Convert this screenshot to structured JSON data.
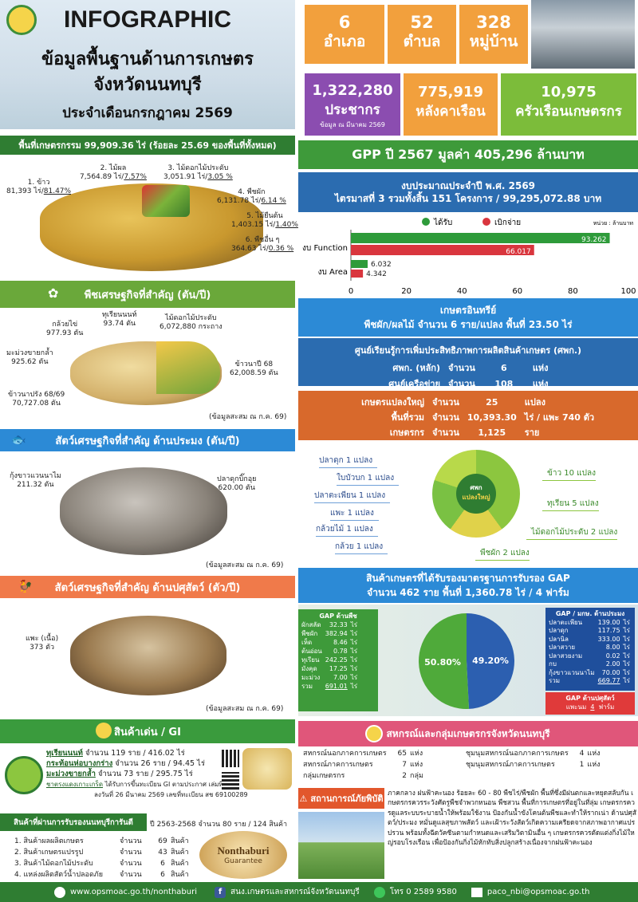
{
  "header": {
    "title": "INFOGRAPHIC",
    "line1": "ข้อมูลพื้นฐานด้านการเกษตร",
    "line2": "จังหวัดนนทบุรี",
    "line3": "ประจำเดือนกรกฎาคม 2569"
  },
  "stats": [
    {
      "num": "6",
      "label": "อำเภอ"
    },
    {
      "num": "52",
      "label": "ตำบล"
    },
    {
      "num": "328",
      "label": "หมู่บ้าน"
    }
  ],
  "stats2": [
    {
      "num": "1,322,280",
      "label": "ประชากร",
      "note": "ข้อมูล ณ มีนาคม 2569"
    },
    {
      "num": "775,919",
      "label": "หลังคาเรือน"
    },
    {
      "num": "10,975",
      "label": "ครัวเรือนเกษตรกร"
    }
  ],
  "agri_area": {
    "banner": "พื้นที่เกษตรกรรม 99,909.36 ไร่ (ร้อยละ 25.69 ของพื้นที่ทั้งหมด)",
    "items": [
      {
        "name": "1. ข้าว",
        "value": "81,393 ไร่/",
        "pct": "81.47%"
      },
      {
        "name": "2. ไม้ผล",
        "value": "7,564.89 ไร่/",
        "pct": "7.57%"
      },
      {
        "name": "3. ไม้ดอกไม้ประดับ",
        "value": "3,051.91 ไร่/",
        "pct": "3.05 %"
      },
      {
        "name": "4. พืชผัก",
        "value": "6,131.78 ไร่/",
        "pct": "6.14 %"
      },
      {
        "name": "5. ไม้ยืนต้น",
        "value": "1,403.15 ไร่/",
        "pct": "1.40%"
      },
      {
        "name": "6. พืชอื่น ๆ",
        "value": "364.63 ไร่/",
        "pct": "0.36 %"
      }
    ]
  },
  "crops": {
    "banner": "พืชเศรษฐกิจที่สำคัญ (ตัน/ปี)",
    "items": [
      {
        "name": "ทุเรียนนนท์",
        "value": "93.74 ตัน"
      },
      {
        "name": "กล้วยไข่",
        "value": "977.93 ตัน"
      },
      {
        "name": "ไม้ดอกไม้ประดับ",
        "value": "6,072,880 กระถาง"
      },
      {
        "name": "มะม่วงขายกล้ำ",
        "value": "925.62 ตัน"
      },
      {
        "name": "ข้าวนาปี 68",
        "value": "62,008.59 ตัน"
      },
      {
        "name": "ข้าวนาปรัง 68/69",
        "value": "70,727.08 ตัน"
      }
    ],
    "note": "(ข้อมูลสะสม ณ ก.ค. 69)"
  },
  "fish": {
    "banner": "สัตว์เศรษฐกิจที่สำคัญ ด้านประมง (ตัน/ปี)",
    "items": [
      {
        "name": "กุ้งขาวแวนนาไม",
        "value": "211.32 ตัน"
      },
      {
        "name": "ปลาดุกบิ๊กอุย",
        "value": "620.00 ตัน"
      }
    ],
    "note": "(ข้อมูลสะสม ณ ก.ค. 69)"
  },
  "livestock": {
    "banner": "สัตว์เศรษฐกิจที่สำคัญ ด้านปศุสัตว์ (ตัว/ปี)",
    "items": [
      {
        "name": "แพะ (เนื้อ)",
        "value": "373 ตัว"
      }
    ],
    "note": "(ข้อมูลสะสม ณ ก.ค. 69)"
  },
  "gi": {
    "banner": "สินค้าเด่น / GI",
    "items": [
      {
        "name": "ทุเรียนนนท์",
        "detail": "จำนวน 119 ราย / 416.02 ไร่"
      },
      {
        "name": "กระท้อนห่อบางกร่าง",
        "detail": "จำนวน 26 ราย / 94.45 ไร่"
      },
      {
        "name": "มะม่วงขายกล้ำ",
        "detail": "จำนวน 73 ราย / 295.75 ไร่"
      },
      {
        "name": "ชาตรงแดงเกาะเกร็ด",
        "detail": "ได้รับการขึ้นทะเบียน GI ตามประกาศ เล่มที่ 110"
      }
    ],
    "foot": "ลงวันที่ 26 มีนาคม 2569 เลขที่ทะเบียน สช 69100289"
  },
  "certified": {
    "title": "สินค้าที่ผ่านการรับรองนนทบุรีการันตี",
    "period": "ปี 2563-2568 จำนวน 80 ราย / 124 สินค้า",
    "items": [
      {
        "name": "1. สินค้าผลผลิตเกษตร",
        "count": "จำนวน",
        "n": "69",
        "unit": "สินค้า"
      },
      {
        "name": "2. สินค้าเกษตรแปรรูป",
        "count": "จำนวน",
        "n": "43",
        "unit": "สินค้า"
      },
      {
        "name": "3. สินค้าไม้ดอกไม้ประดับ",
        "count": "จำนวน",
        "n": "6",
        "unit": "สินค้า"
      },
      {
        "name": "4. แหล่งผลิตสัตว์น้ำปลอดภัย",
        "count": "จำนวน",
        "n": "6",
        "unit": "สินค้า"
      }
    ],
    "logo": "Nonthaburi",
    "logo2": "Guarantee"
  },
  "gpp": "GPP ปี 2567 มูลค่า 405,296  ล้านบาท",
  "budget": {
    "line1": "งบประมาณประจำปี พ.ศ. 2569",
    "line2": "ไตรมาสที่ 3  รวมทั้งสิ้น  151 โครงการ / 99,295,072.88 บาท",
    "legend1": "ได้รับ",
    "legend2": "เบิกจ่าย",
    "unit": "หน่วย : ล้านบาท",
    "chart_data": {
      "type": "bar",
      "categories": [
        "งบ Function",
        "งบ Area"
      ],
      "series": [
        {
          "name": "ได้รับ",
          "values": [
            93.262,
            6.032
          ]
        },
        {
          "name": "เบิกจ่าย",
          "values": [
            66.017,
            4.342
          ]
        }
      ],
      "xlim": [
        0,
        100
      ],
      "xticks": [
        "0",
        "20",
        "40",
        "60",
        "80",
        "100"
      ],
      "colors": [
        "#2e9b3a",
        "#d9363e"
      ]
    }
  },
  "organic": {
    "title": "เกษตรอินทรีย์",
    "detail": "พืชผัก/ผลไม้   จำนวน  6 ราย/แปลง   พื้นที่ 23.50 ไร่"
  },
  "center": {
    "title": "ศูนย์เรียนรู้การเพิ่มประสิทธิภาพการผลิตสินค้าเกษตร (ศพก.)",
    "rows": [
      {
        "a": "ศพก. (หลัก)",
        "b": "จำนวน",
        "c": "6",
        "d": "แห่ง"
      },
      {
        "a": "ศูนย์เครือข่าย",
        "b": "จำนวน",
        "c": "108",
        "d": "แห่ง"
      }
    ]
  },
  "bigfarm": {
    "rows": [
      {
        "a": "เกษตรแปลงใหญ่",
        "b": "จำนวน",
        "c": "25",
        "d": "แปลง"
      },
      {
        "a": "พื้นที่รวม",
        "b": "จำนวน",
        "c": "10,393.30",
        "d": "ไร่ / แพะ 740 ตัว"
      },
      {
        "a": "เกษตรกร",
        "b": "จำนวน",
        "c": "1,125",
        "d": "ราย"
      }
    ],
    "left": [
      "ปลาดุก 1 แปลง",
      "ใบบัวบก 1 แปลง",
      "ปลาตะเพียน 1 แปลง",
      "แพะ  1 แปลง",
      "กล้วยไม้ 1 แปลง",
      "กล้วย 1 แปลง"
    ],
    "right": [
      "ข้าว  10 แปลง",
      "ทุเรียน 5 แปลง",
      "ไม้ดอกไม้ประดับ  2 แปลง",
      "พืชผัก 2 แปลง"
    ],
    "logo": "ศพก",
    "logo2": "แปลงใหญ่"
  },
  "gap": {
    "title": "สินค้าเกษตรที่ได้รับรองมาตรฐานการรับรอง GAP",
    "sub": "จำนวน 462 ราย  พื้นที่ 1,360.78 ไร่ / 4 ฟาร์ม",
    "plant_title": "GAP ด้านพืช",
    "plant": [
      [
        "ผักสลัด",
        "32.33",
        "ไร่"
      ],
      [
        "พืชผัก",
        "382.94",
        "ไร่"
      ],
      [
        "เห็ด",
        "8.46",
        "ไร่"
      ],
      [
        "ต้นอ่อน",
        "0.78",
        "ไร่"
      ],
      [
        "ทุเรียน",
        "242.25",
        "ไร่"
      ],
      [
        "มังคุด",
        "17.25",
        "ไร่"
      ],
      [
        "มะม่วง",
        "7.00",
        "ไร่"
      ],
      [
        "รวม",
        "691.01",
        "ไร่"
      ]
    ],
    "fish_title": "GAP / มกษ. ด้านประมง",
    "fish": [
      [
        "ปลาตะเพียน",
        "139.00",
        "ไร่"
      ],
      [
        "ปลาดุก",
        "117.75",
        "ไร่"
      ],
      [
        "ปลานิล",
        "333.00",
        "ไร่"
      ],
      [
        "ปลาสวาย",
        "8.00",
        "ไร่"
      ],
      [
        "ปลาสวยงาม",
        "0.02",
        "ไร่"
      ],
      [
        "กบ",
        "2.00",
        "ไร่"
      ],
      [
        "กุ้งขาวแวนนาไม",
        "70.00",
        "ไร่"
      ],
      [
        "รวม",
        "669.77",
        "ไร่"
      ]
    ],
    "livestock_title": "GAP ด้านปศุสัตว์",
    "livestock": "แพะนม",
    "livestock_n": "4",
    "livestock_u": "ฟาร์ม",
    "chart_data": {
      "type": "pie",
      "slices": [
        {
          "label": "49.20%",
          "value": 49.2,
          "color": "#2c5fb0"
        },
        {
          "label": "50.80%",
          "value": 50.8,
          "color": "#4faa3a"
        }
      ]
    }
  },
  "coop": {
    "title": "สหกรณ์และกลุ่มเกษตรกรจังหวัดนนทบุรี",
    "left": [
      [
        "สหกรณ์นอกภาคการเกษตร",
        "65",
        "แห่ง"
      ],
      [
        "สหกรณ์ภาคการเกษตร",
        "7",
        "แห่ง"
      ],
      [
        "กลุ่มเกษตรกร",
        "2",
        "กลุ่ม"
      ]
    ],
    "right": [
      [
        "ชุมนุมสหกรณ์นอกภาคการเกษตร",
        "4",
        "แห่ง"
      ],
      [
        "ชุมนุมสหกรณ์ภาคการเกษตร",
        "1",
        "แห่ง"
      ]
    ]
  },
  "disaster": {
    "title": "สถานการณ์ภัยพิบัติ",
    "text": "ภาคกลาง ฝนฟ้าคะนอง ร้อยละ 60 - 80 พืชไร่/พืชผัก พื้นที่ซึ่งมีฝนตกและหยุดสลับกัน เกษตรกรควรระวังศัตรูพืชจำพวกหนอน พืชสวน พื้นที่การเกษตรที่อยู่ในที่ลุ่ม เกษตรกรควรดูแลระบบระบายน้ำให้พร้อมใช้งาน ป้องกันน้ำขังโคนต้นพืชและทำให้รากเน่า ด้านปศุสัตว์/ประมง หมั่นดูแลสุขภาพสัตว์ และเฝ้าระวังสัตว์เกิดความเครียดจากสภาพอากาศแปรปรวน พร้อมทั้งฉีดวัคซีนตามกำหนดและเสริมวิตามินอื่น ๆ เกษตรกรควรตัดแต่งกิ่งไม้ใหญ่รอบโรงเรือน เพื่อป้องกันกิ่งไม้หักทับสิ่งปลูกสร้างเนื่องจากฝนฟ้าคะนอง"
  },
  "footer": {
    "web": "www.opsmoac.go.th/nonthaburi",
    "fb": "สนง.เกษตรและสหกรณ์จังหวัดนนทบุรี",
    "tel": "โทร 0 2589 9580",
    "mail": "paco_nbi@opsmoac.go.th"
  }
}
